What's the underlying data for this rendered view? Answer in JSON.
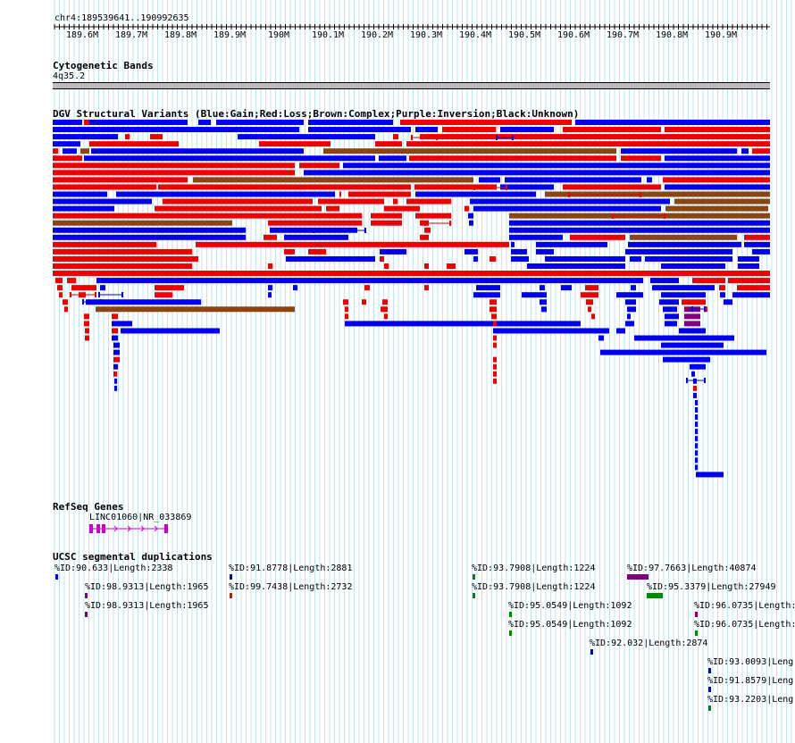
{
  "browser": {
    "position": "chr4:189539641..190992635",
    "ruler_ticks": [
      "189.6M",
      "189.7M",
      "189.8M",
      "189.9M",
      "190M",
      "190.1M",
      "190.2M",
      "190.3M",
      "190.4M",
      "190.5M",
      "190.6M",
      "190.7M",
      "190.8M",
      "190.9M"
    ]
  },
  "tracks": {
    "cytoband": {
      "title": "Cytogenetic Bands",
      "band_label": "4q35.2",
      "band_color": "#bcbcbc"
    },
    "dgv": {
      "title": "DGV Structural Variants (Blue:Gain;Red:Loss;Brown:Complex;Purple:Inversion;Black:Unknown)",
      "colors": {
        "gain": "#0000ee",
        "loss": "#ee0000",
        "complex": "#8b4513",
        "inversion": "#800080",
        "unknown": "#000000"
      }
    },
    "refseq": {
      "title": "RefSeq Genes",
      "gene_label": "LINC01060|NR_033869",
      "gene_color": "#cc00cc"
    },
    "segdup": {
      "title": "UCSC segmental duplications",
      "labels": [
        "%ID:90.633|Length:2338",
        "%ID:91.8778|Length:2881",
        "%ID:93.7908|Length:1224",
        "%ID:97.7663|Length:40874",
        "%ID:98.9313|Length:1965",
        "%ID:99.7438|Length:2732",
        "%ID:93.7908|Length:1224",
        "%ID:95.3379|Length:27949",
        "%ID:98.9313|Length:1965",
        "%ID:95.0549|Length:1092",
        "%ID:96.0735|Length:",
        "%ID:95.0549|Length:1092",
        "%ID:96.0735|Length:",
        "%ID:92.032|Length:2874",
        "%ID:93.0093|Leng",
        "%ID:91.8579|Leng",
        "%ID:93.2203|Leng"
      ]
    }
  }
}
